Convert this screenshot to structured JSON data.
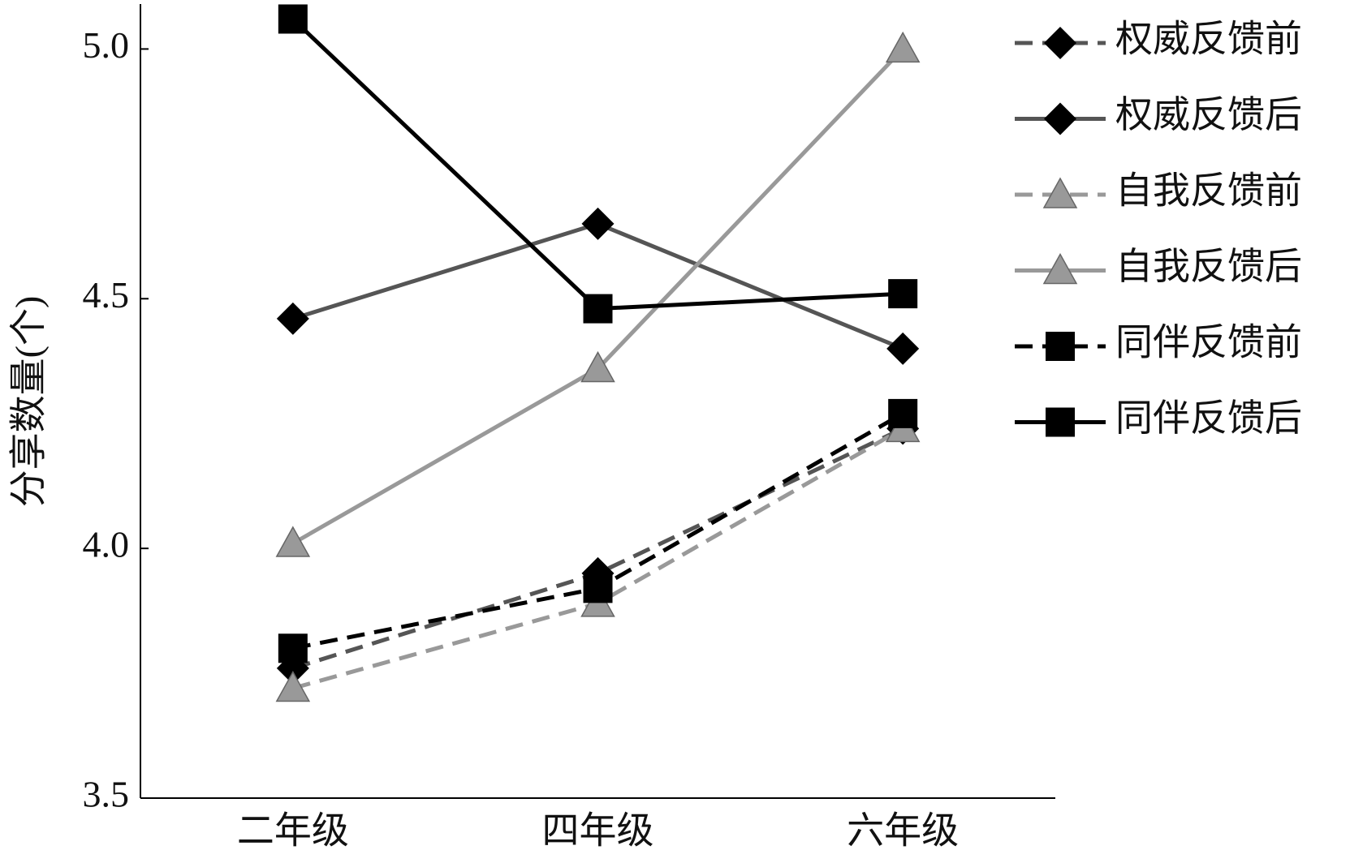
{
  "chart_data": {
    "type": "line",
    "y_label": "分享数量(个)",
    "categories": [
      "二年级",
      "四年级",
      "六年级"
    ],
    "series": [
      {
        "name": "权威反馈前",
        "color": "#555555",
        "dashed": true,
        "marker": "diamond",
        "values": [
          3.76,
          3.95,
          4.24
        ]
      },
      {
        "name": "权威反馈后",
        "color": "#555555",
        "dashed": false,
        "marker": "diamond",
        "values": [
          4.46,
          4.65,
          4.4
        ]
      },
      {
        "name": "自我反馈前",
        "color": "#999999",
        "dashed": true,
        "marker": "triangle",
        "values": [
          3.72,
          3.89,
          4.24
        ]
      },
      {
        "name": "自我反馈后",
        "color": "#999999",
        "dashed": false,
        "marker": "triangle",
        "values": [
          4.01,
          4.36,
          5.0
        ]
      },
      {
        "name": "同伴反馈前",
        "color": "#000000",
        "dashed": true,
        "marker": "square",
        "values": [
          3.8,
          3.92,
          4.27
        ]
      },
      {
        "name": "同伴反馈后",
        "color": "#000000",
        "dashed": false,
        "marker": "square",
        "values": [
          5.06,
          4.48,
          4.51
        ]
      }
    ],
    "ylim": [
      3.5,
      5.09
    ],
    "yticks": [
      {
        "value": 3.5,
        "label": "3.5"
      },
      {
        "value": 4.0,
        "label": "4.0"
      },
      {
        "value": 4.5,
        "label": "4.5"
      },
      {
        "value": 5.0,
        "label": "5.0"
      }
    ],
    "legend": "right"
  }
}
